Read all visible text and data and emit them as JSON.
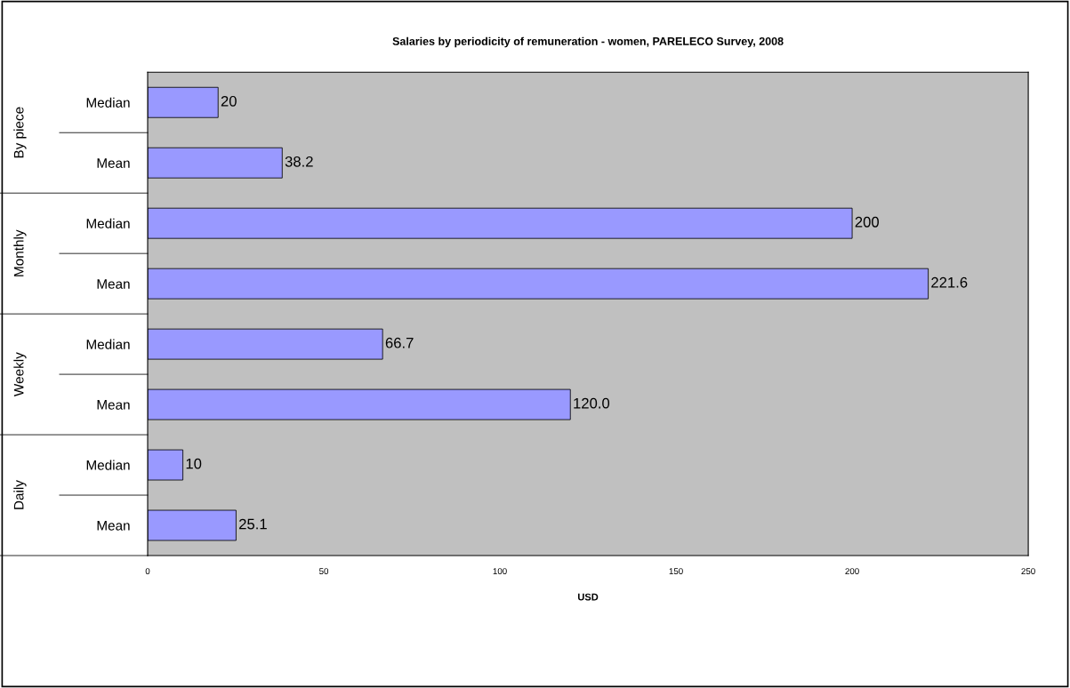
{
  "chart_data": {
    "type": "bar",
    "orientation": "horizontal",
    "title": "Salaries by periodicity of remuneration - women, PARELECO Survey, 2008",
    "xlabel": "USD",
    "categories": [
      "Median",
      "Mean",
      "Median",
      "Mean",
      "Median",
      "Mean",
      "Median",
      "Mean"
    ],
    "annotations": [
      "By piece",
      "Monthly",
      "Weekly",
      "Daily"
    ],
    "values": [
      20,
      38.2,
      200,
      221.6,
      66.7,
      120.0,
      10,
      25.1
    ],
    "value_labels": [
      "20",
      "38.2",
      "200",
      "221.6",
      "66.7",
      "120.0",
      "10",
      "25.1"
    ],
    "color": "#9999ff",
    "xlim": [
      0,
      250
    ],
    "xticks": [
      0,
      50,
      100,
      150,
      200,
      250
    ],
    "grid": false,
    "legend": false
  }
}
